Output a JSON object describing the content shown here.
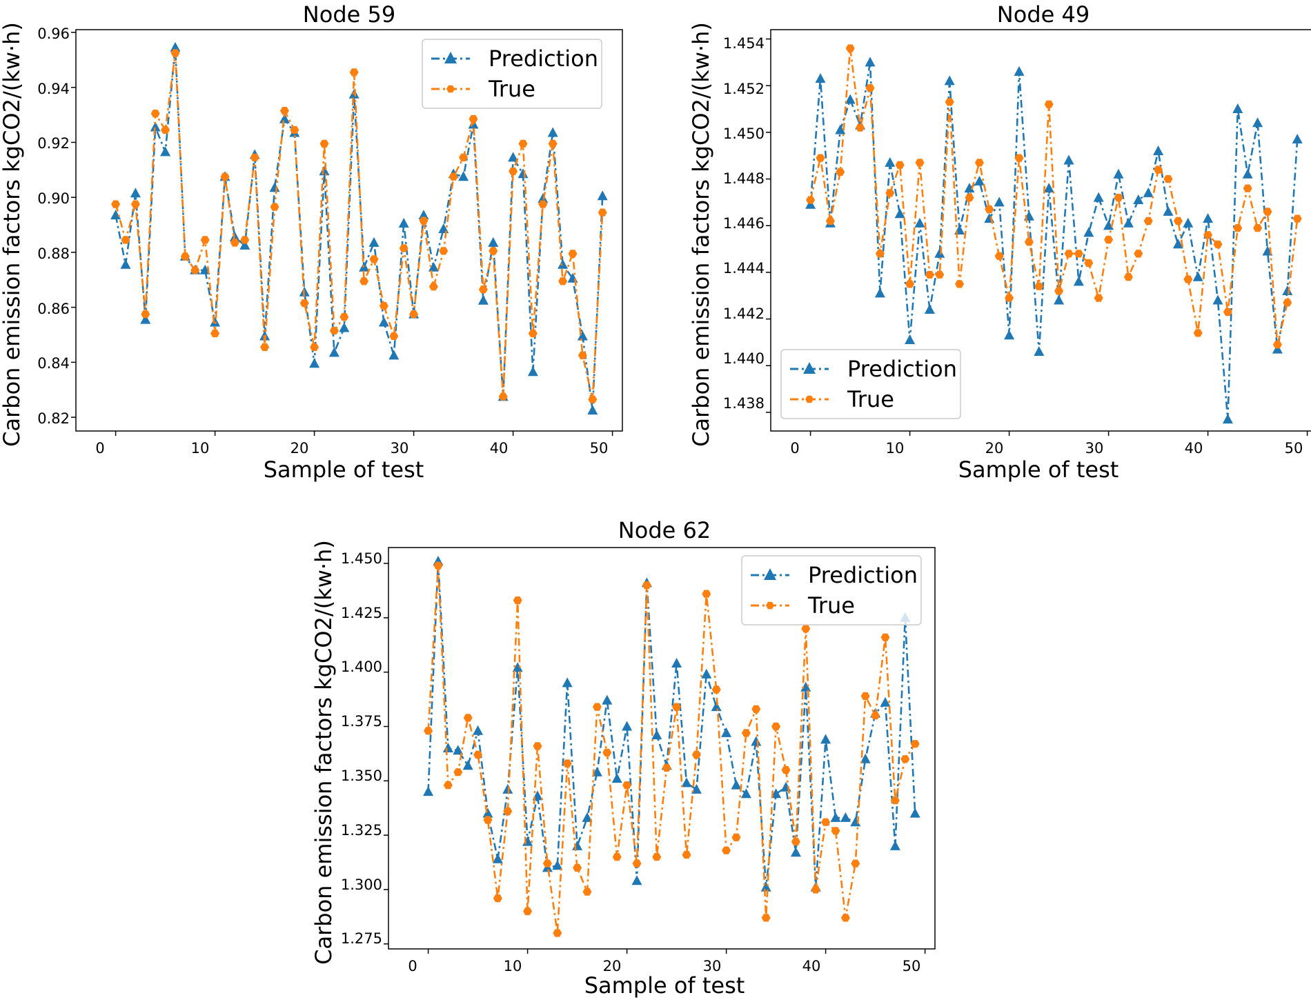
{
  "chart_data": [
    {
      "type": "line",
      "title": "Node 59",
      "xlabel": "Sample of test",
      "ylabel": "Carbon emission factors kgCO2/(kw·h)",
      "xlim": [
        -4,
        51
      ],
      "ylim": [
        0.815,
        0.961
      ],
      "xticks": [
        "0",
        "10",
        "20",
        "30",
        "40",
        "50"
      ],
      "yticks": [
        "0.82",
        "0.84",
        "0.86",
        "0.88",
        "0.90",
        "0.92",
        "0.94",
        "0.96"
      ],
      "legend_position": "upper-right",
      "colors": {
        "prediction": "#1f77b4",
        "true": "#ff7f0e"
      },
      "x": [
        0,
        1,
        2,
        3,
        4,
        5,
        6,
        7,
        8,
        9,
        10,
        11,
        12,
        13,
        14,
        15,
        16,
        17,
        18,
        19,
        20,
        21,
        22,
        23,
        24,
        25,
        26,
        27,
        28,
        29,
        30,
        31,
        32,
        33,
        34,
        35,
        36,
        37,
        38,
        39,
        40,
        41,
        42,
        43,
        44,
        45,
        46,
        47,
        48,
        49
      ],
      "series": [
        {
          "name": "Prediction",
          "marker": "triangle",
          "values": [
            0.8935,
            0.8755,
            0.9015,
            0.8555,
            0.9255,
            0.9165,
            0.9545,
            0.8785,
            0.8735,
            0.8735,
            0.8545,
            0.9075,
            0.8855,
            0.8825,
            0.9155,
            0.8495,
            0.9035,
            0.9285,
            0.9235,
            0.8655,
            0.8395,
            0.9095,
            0.8435,
            0.8525,
            0.9375,
            0.8745,
            0.8835,
            0.8545,
            0.8425,
            0.8905,
            0.8575,
            0.8935,
            0.8745,
            0.8885,
            0.9085,
            0.9075,
            0.9265,
            0.8625,
            0.8835,
            0.8275,
            0.9145,
            0.9085,
            0.8365,
            0.8995,
            0.9235,
            0.8755,
            0.8705,
            0.8495,
            0.8225,
            0.9005
          ]
        },
        {
          "name": "True",
          "marker": "hexagon",
          "values": [
            0.8975,
            0.8845,
            0.8975,
            0.8575,
            0.9305,
            0.9245,
            0.9525,
            0.8785,
            0.8735,
            0.8845,
            0.8505,
            0.9075,
            0.8835,
            0.8845,
            0.9145,
            0.8455,
            0.8965,
            0.9315,
            0.9245,
            0.8615,
            0.8455,
            0.9195,
            0.8515,
            0.8565,
            0.9455,
            0.8695,
            0.8775,
            0.8605,
            0.8495,
            0.8815,
            0.8575,
            0.8915,
            0.8675,
            0.8805,
            0.9075,
            0.9145,
            0.9285,
            0.8665,
            0.8805,
            0.8275,
            0.9095,
            0.9195,
            0.8505,
            0.8975,
            0.9195,
            0.8695,
            0.8795,
            0.8425,
            0.8265,
            0.8945
          ]
        }
      ]
    },
    {
      "type": "line",
      "title": "Node 49",
      "xlabel": "Sample of test",
      "ylabel": "Carbon emission factors kgCO2/(kw·h)",
      "xlim": [
        -4,
        51
      ],
      "ylim": [
        1.4372,
        1.4544
      ],
      "xticks": [
        "0",
        "10",
        "20",
        "30",
        "40",
        "50"
      ],
      "yticks": [
        "1.438",
        "1.440",
        "1.442",
        "1.444",
        "1.446",
        "1.448",
        "1.450",
        "1.452",
        "1.454"
      ],
      "legend_position": "lower-left",
      "colors": {
        "prediction": "#1f77b4",
        "true": "#ff7f0e"
      },
      "x": [
        0,
        1,
        2,
        3,
        4,
        5,
        6,
        7,
        8,
        9,
        10,
        11,
        12,
        13,
        14,
        15,
        16,
        17,
        18,
        19,
        20,
        21,
        22,
        23,
        24,
        25,
        26,
        27,
        28,
        29,
        30,
        31,
        32,
        33,
        34,
        35,
        36,
        37,
        38,
        39,
        40,
        41,
        42,
        43,
        44,
        45,
        46,
        47,
        48,
        49
      ],
      "series": [
        {
          "name": "Prediction",
          "marker": "triangle",
          "values": [
            1.4469,
            1.4523,
            1.4461,
            1.4501,
            1.4514,
            1.4503,
            1.453,
            1.4431,
            1.4487,
            1.4465,
            1.4411,
            1.4461,
            1.4424,
            1.4448,
            1.4522,
            1.4458,
            1.4476,
            1.4479,
            1.4463,
            1.447,
            1.4413,
            1.4526,
            1.4464,
            1.4406,
            1.4476,
            1.4428,
            1.4488,
            1.4436,
            1.4457,
            1.4472,
            1.446,
            1.4482,
            1.4461,
            1.4471,
            1.4474,
            1.4492,
            1.4466,
            1.4452,
            1.4461,
            1.4438,
            1.4463,
            1.4428,
            1.4377,
            1.451,
            1.4482,
            1.4504,
            1.4449,
            1.4407,
            1.4432,
            1.4497
          ]
        },
        {
          "name": "True",
          "marker": "hexagon",
          "values": [
            1.4471,
            1.4489,
            1.4462,
            1.4483,
            1.4536,
            1.4502,
            1.4519,
            1.4448,
            1.4474,
            1.4486,
            1.4435,
            1.4487,
            1.4439,
            1.4439,
            1.4513,
            1.4435,
            1.4472,
            1.4487,
            1.4467,
            1.4447,
            1.4429,
            1.4489,
            1.4453,
            1.4434,
            1.4512,
            1.4432,
            1.4448,
            1.4448,
            1.4444,
            1.4429,
            1.4454,
            1.4472,
            1.4438,
            1.4448,
            1.4462,
            1.4484,
            1.448,
            1.4462,
            1.4437,
            1.4414,
            1.4456,
            1.4452,
            1.4423,
            1.4459,
            1.4476,
            1.4459,
            1.4466,
            1.4409,
            1.4427,
            1.4463
          ]
        }
      ]
    },
    {
      "type": "line",
      "title": "Node 62",
      "xlabel": "Sample of test",
      "ylabel": "Carbon emission factors kgCO2/(kw·h)",
      "xlim": [
        -4,
        51
      ],
      "ylim": [
        1.2727,
        1.4573
      ],
      "xticks": [
        "0",
        "10",
        "20",
        "30",
        "40",
        "50"
      ],
      "yticks": [
        "1.275",
        "1.300",
        "1.325",
        "1.350",
        "1.375",
        "1.400",
        "1.425",
        "1.450"
      ],
      "legend_position": "upper-right",
      "colors": {
        "prediction": "#1f77b4",
        "true": "#ff7f0e"
      },
      "x": [
        0,
        1,
        2,
        3,
        4,
        5,
        6,
        7,
        8,
        9,
        10,
        11,
        12,
        13,
        14,
        15,
        16,
        17,
        18,
        19,
        20,
        21,
        22,
        23,
        24,
        25,
        26,
        27,
        28,
        29,
        30,
        31,
        32,
        33,
        34,
        35,
        36,
        37,
        38,
        39,
        40,
        41,
        42,
        43,
        44,
        45,
        46,
        47,
        48,
        49
      ],
      "series": [
        {
          "name": "Prediction",
          "marker": "triangle",
          "values": [
            1.345,
            1.451,
            1.365,
            1.364,
            1.357,
            1.373,
            1.335,
            1.314,
            1.346,
            1.402,
            1.322,
            1.343,
            1.31,
            1.311,
            1.395,
            1.32,
            1.333,
            1.354,
            1.387,
            1.351,
            1.375,
            1.304,
            1.441,
            1.371,
            1.357,
            1.404,
            1.349,
            1.346,
            1.399,
            1.384,
            1.372,
            1.348,
            1.344,
            1.368,
            1.301,
            1.344,
            1.347,
            1.317,
            1.393,
            1.301,
            1.369,
            1.333,
            1.333,
            1.331,
            1.36,
            1.381,
            1.386,
            1.32,
            1.425,
            1.335
          ]
        },
        {
          "name": "True",
          "marker": "hexagon",
          "values": [
            1.373,
            1.449,
            1.348,
            1.354,
            1.379,
            1.362,
            1.332,
            1.296,
            1.336,
            1.433,
            1.29,
            1.366,
            1.312,
            1.28,
            1.358,
            1.31,
            1.299,
            1.384,
            1.363,
            1.315,
            1.348,
            1.312,
            1.44,
            1.315,
            1.356,
            1.384,
            1.316,
            1.362,
            1.436,
            1.392,
            1.318,
            1.324,
            1.372,
            1.383,
            1.287,
            1.375,
            1.355,
            1.322,
            1.42,
            1.3,
            1.331,
            1.327,
            1.287,
            1.312,
            1.389,
            1.38,
            1.416,
            1.341,
            1.36,
            1.367
          ]
        }
      ]
    }
  ]
}
